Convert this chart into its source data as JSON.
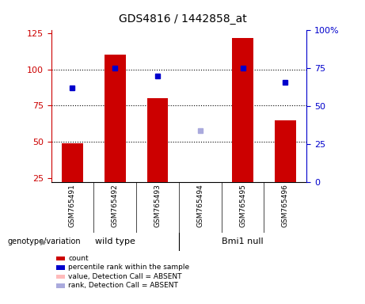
{
  "title": "GDS4816 / 1442858_at",
  "samples": [
    "GSM765491",
    "GSM765492",
    "GSM765493",
    "GSM765494",
    "GSM765495",
    "GSM765496"
  ],
  "count_values": [
    49,
    110,
    80,
    22,
    122,
    65
  ],
  "rank_values": [
    62,
    75,
    70,
    null,
    75,
    66
  ],
  "absent_count": [
    null,
    null,
    null,
    22,
    null,
    null
  ],
  "absent_rank": [
    null,
    null,
    null,
    34,
    null,
    null
  ],
  "ylim_left": [
    22,
    127
  ],
  "ylim_right": [
    0,
    100
  ],
  "yticks_left": [
    25,
    50,
    75,
    100,
    125
  ],
  "yticks_right": [
    0,
    25,
    50,
    75,
    100
  ],
  "ytick_labels_right": [
    "0",
    "25",
    "50",
    "75",
    "100%"
  ],
  "bar_color": "#cc0000",
  "rank_color": "#0000cc",
  "absent_bar_color": "#ffbbbb",
  "absent_rank_color": "#aaaadd",
  "grid_lines": [
    50,
    75,
    100
  ],
  "bar_width": 0.5,
  "legend_items": [
    {
      "color": "#cc0000",
      "label": "count"
    },
    {
      "color": "#0000cc",
      "label": "percentile rank within the sample"
    },
    {
      "color": "#ffbbbb",
      "label": "value, Detection Call = ABSENT"
    },
    {
      "color": "#aaaadd",
      "label": "rank, Detection Call = ABSENT"
    }
  ],
  "group_label": "genotype/variation",
  "left_axis_color": "#cc0000",
  "right_axis_color": "#0000cc",
  "bg_color": "#ffffff",
  "plot_bg_color": "#ffffff",
  "label_area_color": "#cccccc",
  "group_area_color": "#77ee77"
}
